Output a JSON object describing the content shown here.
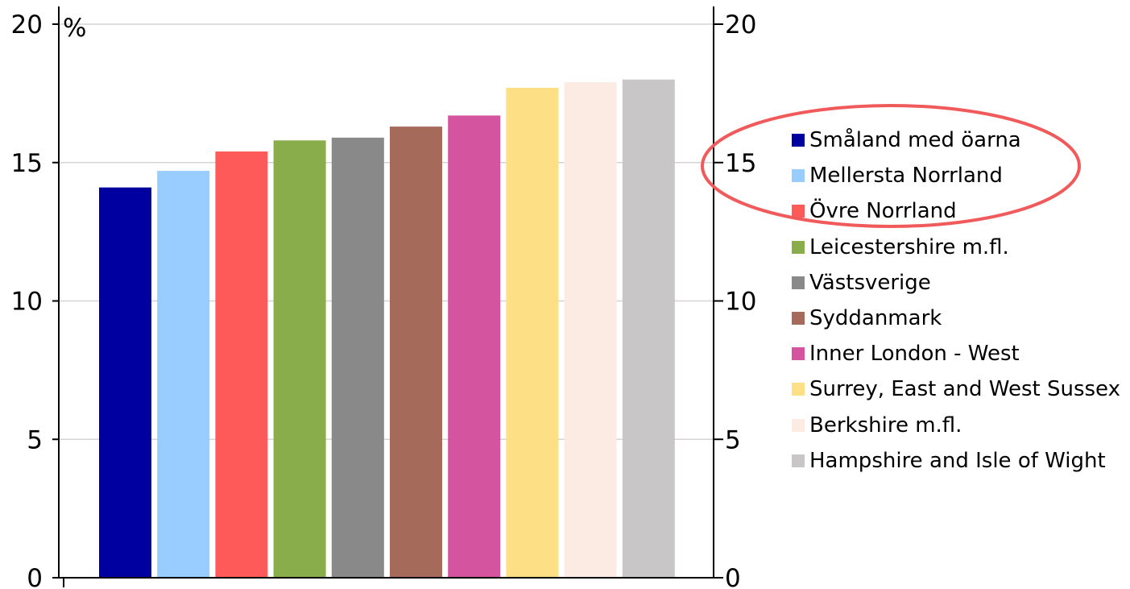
{
  "chart_data": {
    "type": "bar",
    "unit": "%",
    "ylim": [
      0,
      20
    ],
    "y_ticks": [
      0,
      5,
      10,
      15,
      20
    ],
    "grid": true,
    "legend_position": "right",
    "categories": [
      "Småland med öarna",
      "Mellersta Norrland",
      "Övre Norrland",
      "Leicestershire m.fl.",
      "Västsverige",
      "Syddanmark",
      "Inner London - West",
      "Surrey, East and West Sussex",
      "Berkshire m.fl.",
      "Hampshire and Isle of Wight"
    ],
    "values": [
      14.1,
      14.7,
      15.4,
      15.8,
      15.9,
      16.3,
      16.7,
      17.7,
      17.9,
      18.0
    ],
    "colors": [
      "#0000a0",
      "#99ccff",
      "#ff5a5a",
      "#8aad4b",
      "#898989",
      "#a66a5a",
      "#d4549f",
      "#fde086",
      "#fcebe3",
      "#c8c6c7"
    ],
    "highlight": {
      "shape": "ellipse",
      "color": "#f05a5a",
      "covers": [
        "Småland med öarna",
        "Mellersta Norrland"
      ]
    }
  }
}
